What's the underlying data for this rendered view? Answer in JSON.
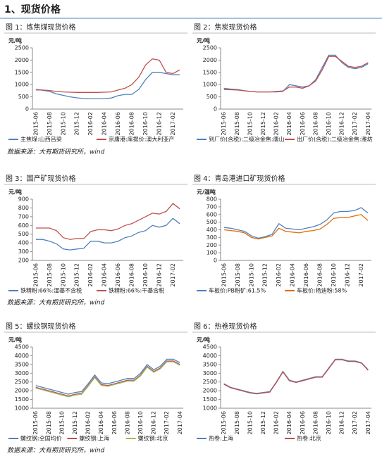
{
  "header": {
    "title": "1、现货价格"
  },
  "chart_data": [
    {
      "type": "line",
      "title": "图 1：炼焦煤现货价格",
      "ylabel": "元/吨",
      "categories": [
        "2015-06",
        null,
        "2015-08",
        null,
        "2015-10",
        null,
        "2015-12",
        null,
        "2016-02",
        null,
        "2016-04",
        null,
        "2016-06",
        null,
        "2016-08",
        null,
        "2016-10",
        null,
        "2016-12",
        null,
        "2017-02",
        null
      ],
      "series": [
        {
          "name": "主焦煤:山西吕梁",
          "color": "#4f81bd",
          "values": [
            800,
            770,
            720,
            620,
            560,
            500,
            460,
            430,
            420,
            420,
            430,
            450,
            550,
            600,
            600,
            800,
            1200,
            1500,
            1500,
            1450,
            1400,
            1400
          ]
        },
        {
          "name": "京唐港:库提价:澳大利亚产",
          "color": "#c0504d",
          "values": [
            780,
            780,
            760,
            720,
            700,
            690,
            680,
            680,
            680,
            680,
            690,
            700,
            780,
            850,
            1000,
            1300,
            1800,
            2050,
            2000,
            1500,
            1450,
            1600
          ]
        }
      ],
      "ylim": [
        0,
        2500
      ],
      "yticks": [
        0,
        500,
        1000,
        1500,
        2000,
        2500
      ]
    },
    {
      "type": "line",
      "title": "图 2：焦炭现货价格",
      "ylabel": "元/吨",
      "categories": [
        "2015-06",
        null,
        "2015-08",
        null,
        "2015-10",
        null,
        "2015-12",
        null,
        "2016-02",
        null,
        "2016-04",
        null,
        "2016-06",
        null,
        "2016-08",
        null,
        "2016-10",
        null,
        "2016-12",
        null,
        "2017-02",
        null,
        "2017-04"
      ],
      "series": [
        {
          "name": "到厂价(含税):二级冶金焦:唐山",
          "color": "#4f81bd",
          "values": [
            850,
            820,
            800,
            760,
            720,
            700,
            700,
            700,
            700,
            720,
            1000,
            950,
            900,
            950,
            1200,
            1700,
            2200,
            2200,
            1900,
            1700,
            1650,
            1700,
            1850
          ]
        },
        {
          "name": "出厂价(含税):二级冶金焦:潍坊",
          "color": "#c0504d",
          "values": [
            800,
            790,
            780,
            750,
            720,
            700,
            700,
            700,
            720,
            740,
            900,
            900,
            850,
            950,
            1150,
            1600,
            2150,
            2150,
            1950,
            1750,
            1700,
            1750,
            1900
          ]
        }
      ],
      "ylim": [
        0,
        2500
      ],
      "yticks": [
        0,
        500,
        1000,
        1500,
        2000,
        2500
      ]
    },
    {
      "type": "line",
      "title": "图 3：国产矿现货价格",
      "ylabel": "元/吨",
      "categories": [
        "2015-06",
        null,
        "2015-08",
        null,
        "2015-10",
        null,
        "2015-12",
        null,
        "2016-02",
        null,
        "2016-04",
        null,
        "2016-06",
        null,
        "2016-08",
        null,
        "2016-10",
        null,
        "2016-12",
        null,
        "2017-02",
        null
      ],
      "series": [
        {
          "name": "铁精粉:66%:湿基不含税",
          "color": "#4f81bd",
          "values": [
            440,
            440,
            420,
            390,
            330,
            320,
            330,
            340,
            420,
            420,
            400,
            400,
            420,
            460,
            480,
            520,
            540,
            600,
            580,
            600,
            680,
            620
          ]
        },
        {
          "name": "铁精粉:66%:干基含税",
          "color": "#c0504d",
          "values": [
            570,
            570,
            570,
            540,
            460,
            440,
            450,
            450,
            530,
            550,
            550,
            540,
            560,
            600,
            620,
            660,
            700,
            740,
            730,
            760,
            850,
            790
          ]
        }
      ],
      "ylim": [
        200,
        900
      ],
      "yticks": [
        200,
        300,
        400,
        500,
        600,
        700,
        800,
        900
      ]
    },
    {
      "type": "line",
      "title": "图 4：青岛港进口矿现货价格",
      "ylabel": "元/湿吨",
      "categories": [
        "2015-06",
        null,
        "2015-08",
        null,
        "2015-10",
        null,
        "2015-12",
        null,
        "2016-02",
        null,
        "2016-04",
        null,
        "2016-06",
        null,
        "2016-08",
        null,
        "2016-10",
        null,
        "2016-12",
        null,
        "2017-02",
        null
      ],
      "series": [
        {
          "name": "车板价:PB粉矿:61.5%",
          "color": "#4f81bd",
          "values": [
            430,
            420,
            400,
            380,
            320,
            290,
            310,
            340,
            480,
            420,
            410,
            400,
            420,
            440,
            470,
            530,
            620,
            640,
            640,
            650,
            690,
            620
          ]
        },
        {
          "name": "车板价:杨迪粉:58%",
          "color": "#e46c0a",
          "values": [
            400,
            390,
            380,
            360,
            300,
            280,
            300,
            320,
            420,
            380,
            370,
            360,
            380,
            390,
            410,
            470,
            550,
            560,
            560,
            580,
            600,
            520
          ]
        }
      ],
      "ylim": [
        0,
        800
      ],
      "yticks": [
        0,
        100,
        200,
        300,
        400,
        500,
        600,
        700,
        800
      ]
    },
    {
      "type": "line",
      "title": "图 5：螺纹钢现货价格",
      "ylabel": "元/吨",
      "categories": [
        "2015-06",
        null,
        "2015-08",
        null,
        "2015-10",
        null,
        "2015-12",
        null,
        "2016-02",
        null,
        "2016-04",
        null,
        "2016-06",
        null,
        "2016-08",
        null,
        "2016-10",
        null,
        "2016-12",
        null,
        "2017-02",
        null,
        "2017-04"
      ],
      "series": [
        {
          "name": "螺纹钢:全国均价",
          "color": "#4f81bd",
          "values": [
            2300,
            2200,
            2100,
            2000,
            1900,
            1800,
            1900,
            1950,
            2400,
            2900,
            2450,
            2400,
            2500,
            2600,
            2700,
            2700,
            3000,
            3500,
            3200,
            3400,
            3800,
            3800,
            3600
          ]
        },
        {
          "name": "螺纹钢:上海",
          "color": "#c0504d",
          "values": [
            2200,
            2100,
            2000,
            1900,
            1800,
            1700,
            1800,
            1850,
            2300,
            2800,
            2350,
            2300,
            2400,
            2500,
            2600,
            2600,
            2900,
            3400,
            3100,
            3300,
            3700,
            3700,
            3500
          ]
        },
        {
          "name": "螺纹钢:北京",
          "color": "#9bbb59",
          "values": [
            2150,
            2050,
            1950,
            1850,
            1750,
            1650,
            1750,
            1800,
            2250,
            2750,
            2300,
            2250,
            2350,
            2450,
            2550,
            2550,
            2850,
            3350,
            3050,
            3250,
            3650,
            3650,
            3450
          ]
        }
      ],
      "ylim": [
        1000,
        4500
      ],
      "yticks": [
        1000,
        1500,
        2000,
        2500,
        3000,
        3500,
        4000,
        4500
      ]
    },
    {
      "type": "line",
      "title": "图 6：热卷现货价格",
      "ylabel": "元/吨",
      "categories": [
        "2015-06",
        null,
        "2015-08",
        null,
        "2015-10",
        null,
        "2015-12",
        null,
        "2016-02",
        null,
        "2016-04",
        null,
        "2016-06",
        null,
        "2016-08",
        null,
        "2016-10",
        null,
        "2016-12",
        null,
        "2017-02",
        null,
        "2017-04"
      ],
      "series": [
        {
          "name": "热卷:上海",
          "color": "#4f81bd",
          "values": [
            2400,
            2200,
            2100,
            2000,
            1900,
            1850,
            1900,
            1950,
            2500,
            3100,
            2600,
            2500,
            2600,
            2700,
            2800,
            2800,
            3300,
            3800,
            3800,
            3700,
            3700,
            3600,
            3200
          ]
        },
        {
          "name": "热卷:北京",
          "color": "#c0504d",
          "values": [
            2370,
            2170,
            2070,
            1970,
            1870,
            1820,
            1870,
            1920,
            2470,
            3070,
            2570,
            2470,
            2570,
            2670,
            2770,
            2770,
            3270,
            3770,
            3770,
            3670,
            3670,
            3570,
            3170
          ]
        }
      ],
      "ylim": [
        1000,
        4500
      ],
      "yticks": [
        1000,
        1500,
        2000,
        2500,
        3000,
        3500,
        4000,
        4500
      ]
    }
  ],
  "sources": [
    "数据来源：大有期货研究所，wind",
    "数据来源：大有期货研究所，wind",
    "数据来源：大有期货研究所，wind"
  ]
}
